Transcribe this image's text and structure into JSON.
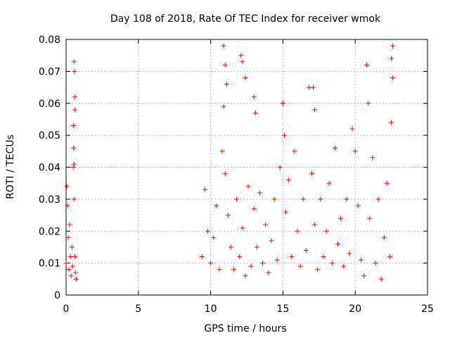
{
  "chart_data": {
    "type": "scatter",
    "title": "Day 108 of 2018, Rate Of TEC Index for receiver wmok",
    "xlabel": "GPS time / hours",
    "ylabel": "ROTI / TECUs",
    "xlim": [
      0,
      25
    ],
    "ylim": [
      0,
      0.08
    ],
    "x_ticks": [
      "0",
      "5",
      "10",
      "15",
      "20",
      "25"
    ],
    "y_ticks": [
      "0",
      "0.01",
      "0.02",
      "0.03",
      "0.04",
      "0.05",
      "0.06",
      "0.07",
      "0.08"
    ],
    "grid": true,
    "marker": "+",
    "color": "#ff0000",
    "series": [
      {
        "x": [
          0.0,
          0.05,
          0.1,
          0.15,
          0.2,
          0.25,
          0.3,
          0.35,
          0.4,
          0.45,
          0.5,
          0.55,
          0.6,
          0.65,
          0.7,
          0.55,
          0.58,
          0.6,
          0.62,
          0.5,
          0.52,
          0.55,
          9.4,
          9.6,
          9.8,
          10.0,
          10.2,
          10.4,
          10.6,
          10.8,
          10.9,
          11.0,
          11.2,
          11.4,
          11.6,
          11.8,
          12.0,
          12.2,
          12.4,
          12.6,
          12.8,
          13.0,
          13.2,
          13.4,
          13.6,
          13.8,
          14.0,
          14.2,
          14.4,
          14.6,
          14.8,
          15.0,
          15.2,
          15.4,
          15.6,
          15.8,
          16.0,
          16.2,
          16.4,
          16.6,
          16.8,
          17.0,
          17.2,
          17.4,
          17.6,
          17.8,
          18.0,
          18.2,
          18.4,
          18.6,
          18.8,
          19.0,
          19.2,
          19.4,
          19.6,
          19.8,
          20.0,
          20.2,
          20.4,
          20.6,
          20.8,
          21.0,
          21.2,
          21.4,
          21.6,
          21.8,
          22.0,
          22.2,
          22.4,
          22.5,
          22.6,
          10.9,
          11.0,
          11.1,
          12.1,
          12.2,
          12.4,
          13.0,
          13.1,
          15.0,
          15.1,
          17.1,
          17.2,
          20.8,
          20.9,
          22.5,
          22.6
        ],
        "y": [
          0.01,
          0.034,
          0.028,
          0.018,
          0.008,
          0.022,
          0.012,
          0.006,
          0.015,
          0.009,
          0.04,
          0.041,
          0.012,
          0.007,
          0.005,
          0.073,
          0.07,
          0.062,
          0.058,
          0.053,
          0.046,
          0.03,
          0.012,
          0.033,
          0.02,
          0.01,
          0.018,
          0.028,
          0.008,
          0.045,
          0.059,
          0.038,
          0.025,
          0.015,
          0.008,
          0.03,
          0.012,
          0.021,
          0.006,
          0.034,
          0.009,
          0.027,
          0.015,
          0.032,
          0.01,
          0.022,
          0.007,
          0.017,
          0.03,
          0.011,
          0.04,
          0.06,
          0.026,
          0.036,
          0.012,
          0.045,
          0.02,
          0.009,
          0.03,
          0.014,
          0.065,
          0.038,
          0.022,
          0.008,
          0.03,
          0.012,
          0.02,
          0.035,
          0.01,
          0.046,
          0.016,
          0.024,
          0.009,
          0.03,
          0.013,
          0.052,
          0.045,
          0.028,
          0.011,
          0.006,
          0.072,
          0.024,
          0.043,
          0.01,
          0.03,
          0.005,
          0.018,
          0.035,
          0.012,
          0.054,
          0.078,
          0.078,
          0.072,
          0.066,
          0.075,
          0.073,
          0.068,
          0.062,
          0.057,
          0.06,
          0.05,
          0.065,
          0.058,
          0.072,
          0.06,
          0.074,
          0.068
        ]
      }
    ]
  }
}
